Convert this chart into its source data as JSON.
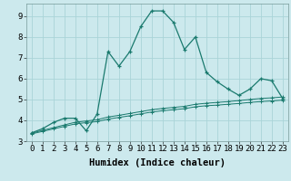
{
  "xlabel": "Humidex (Indice chaleur)",
  "bg_color": "#cce9ed",
  "line_color": "#1a7a6e",
  "grid_color": "#aad4d8",
  "x_values": [
    0,
    1,
    2,
    3,
    4,
    5,
    6,
    7,
    8,
    9,
    10,
    11,
    12,
    13,
    14,
    15,
    16,
    17,
    18,
    19,
    20,
    21,
    22,
    23
  ],
  "curve1": [
    3.4,
    3.6,
    3.9,
    4.1,
    4.1,
    3.5,
    4.3,
    7.3,
    6.6,
    7.3,
    8.5,
    9.25,
    9.25,
    8.7,
    7.4,
    8.0,
    6.3,
    5.85,
    5.5,
    5.2,
    5.5,
    6.0,
    5.9,
    5.05
  ],
  "curve2": [
    3.38,
    3.52,
    3.65,
    3.78,
    3.91,
    3.97,
    4.03,
    4.16,
    4.24,
    4.33,
    4.42,
    4.51,
    4.57,
    4.62,
    4.67,
    4.77,
    4.82,
    4.86,
    4.9,
    4.95,
    5.0,
    5.05,
    5.08,
    5.12
  ],
  "curve3": [
    3.35,
    3.47,
    3.59,
    3.71,
    3.83,
    3.89,
    3.94,
    4.06,
    4.14,
    4.22,
    4.31,
    4.4,
    4.46,
    4.51,
    4.56,
    4.65,
    4.7,
    4.73,
    4.77,
    4.81,
    4.86,
    4.9,
    4.93,
    4.97
  ],
  "ylim": [
    3.0,
    9.6
  ],
  "xlim": [
    -0.5,
    23.5
  ],
  "yticks": [
    3,
    4,
    5,
    6,
    7,
    8,
    9
  ],
  "xticks": [
    0,
    1,
    2,
    3,
    4,
    5,
    6,
    7,
    8,
    9,
    10,
    11,
    12,
    13,
    14,
    15,
    16,
    17,
    18,
    19,
    20,
    21,
    22,
    23
  ],
  "tick_fontsize": 6.5,
  "axis_fontsize": 7.5
}
